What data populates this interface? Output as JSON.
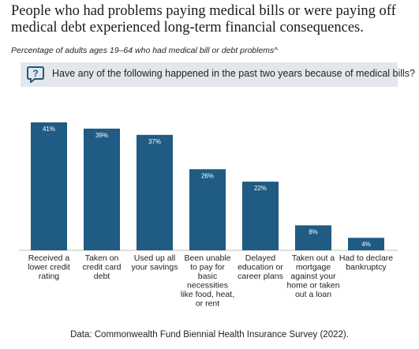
{
  "title": "People who had problems paying medical bills or were paying off medical debt experienced long-term financial consequences.",
  "subtitle": "Percentage of adults ages 19–64 who had medical bill or debt problems^",
  "question": {
    "icon": "question-bubble-icon",
    "text": "Have any of the following happened in the past two years because of medical bills?"
  },
  "source": "Data: Commonwealth Fund Biennial Health Insurance Survey (2022).",
  "colors": {
    "bar": "#1f5b82",
    "question_bg": "#e3e7ec",
    "icon": "#1f5b82"
  },
  "chart_data": {
    "type": "bar",
    "categories": [
      [
        "Received a",
        "lower credit",
        "rating"
      ],
      [
        "Taken on",
        "credit card",
        "debt"
      ],
      [
        "Used up all",
        "your savings"
      ],
      [
        "Been unable",
        "to pay for",
        "basic",
        "necessities",
        "like food, heat,",
        "or rent"
      ],
      [
        "Delayed",
        "education or",
        "career plans"
      ],
      [
        "Taken out a",
        "mortgage",
        "against your",
        "home or taken",
        "out a loan"
      ],
      [
        "Had to declare",
        "bankruptcy"
      ]
    ],
    "values": [
      41,
      39,
      37,
      26,
      22,
      8,
      4
    ],
    "data_labels": [
      "41%",
      "39%",
      "37%",
      "26%",
      "22%",
      "8%",
      "4%"
    ],
    "ylim": [
      0,
      41
    ],
    "grid": false,
    "legend": "none"
  }
}
